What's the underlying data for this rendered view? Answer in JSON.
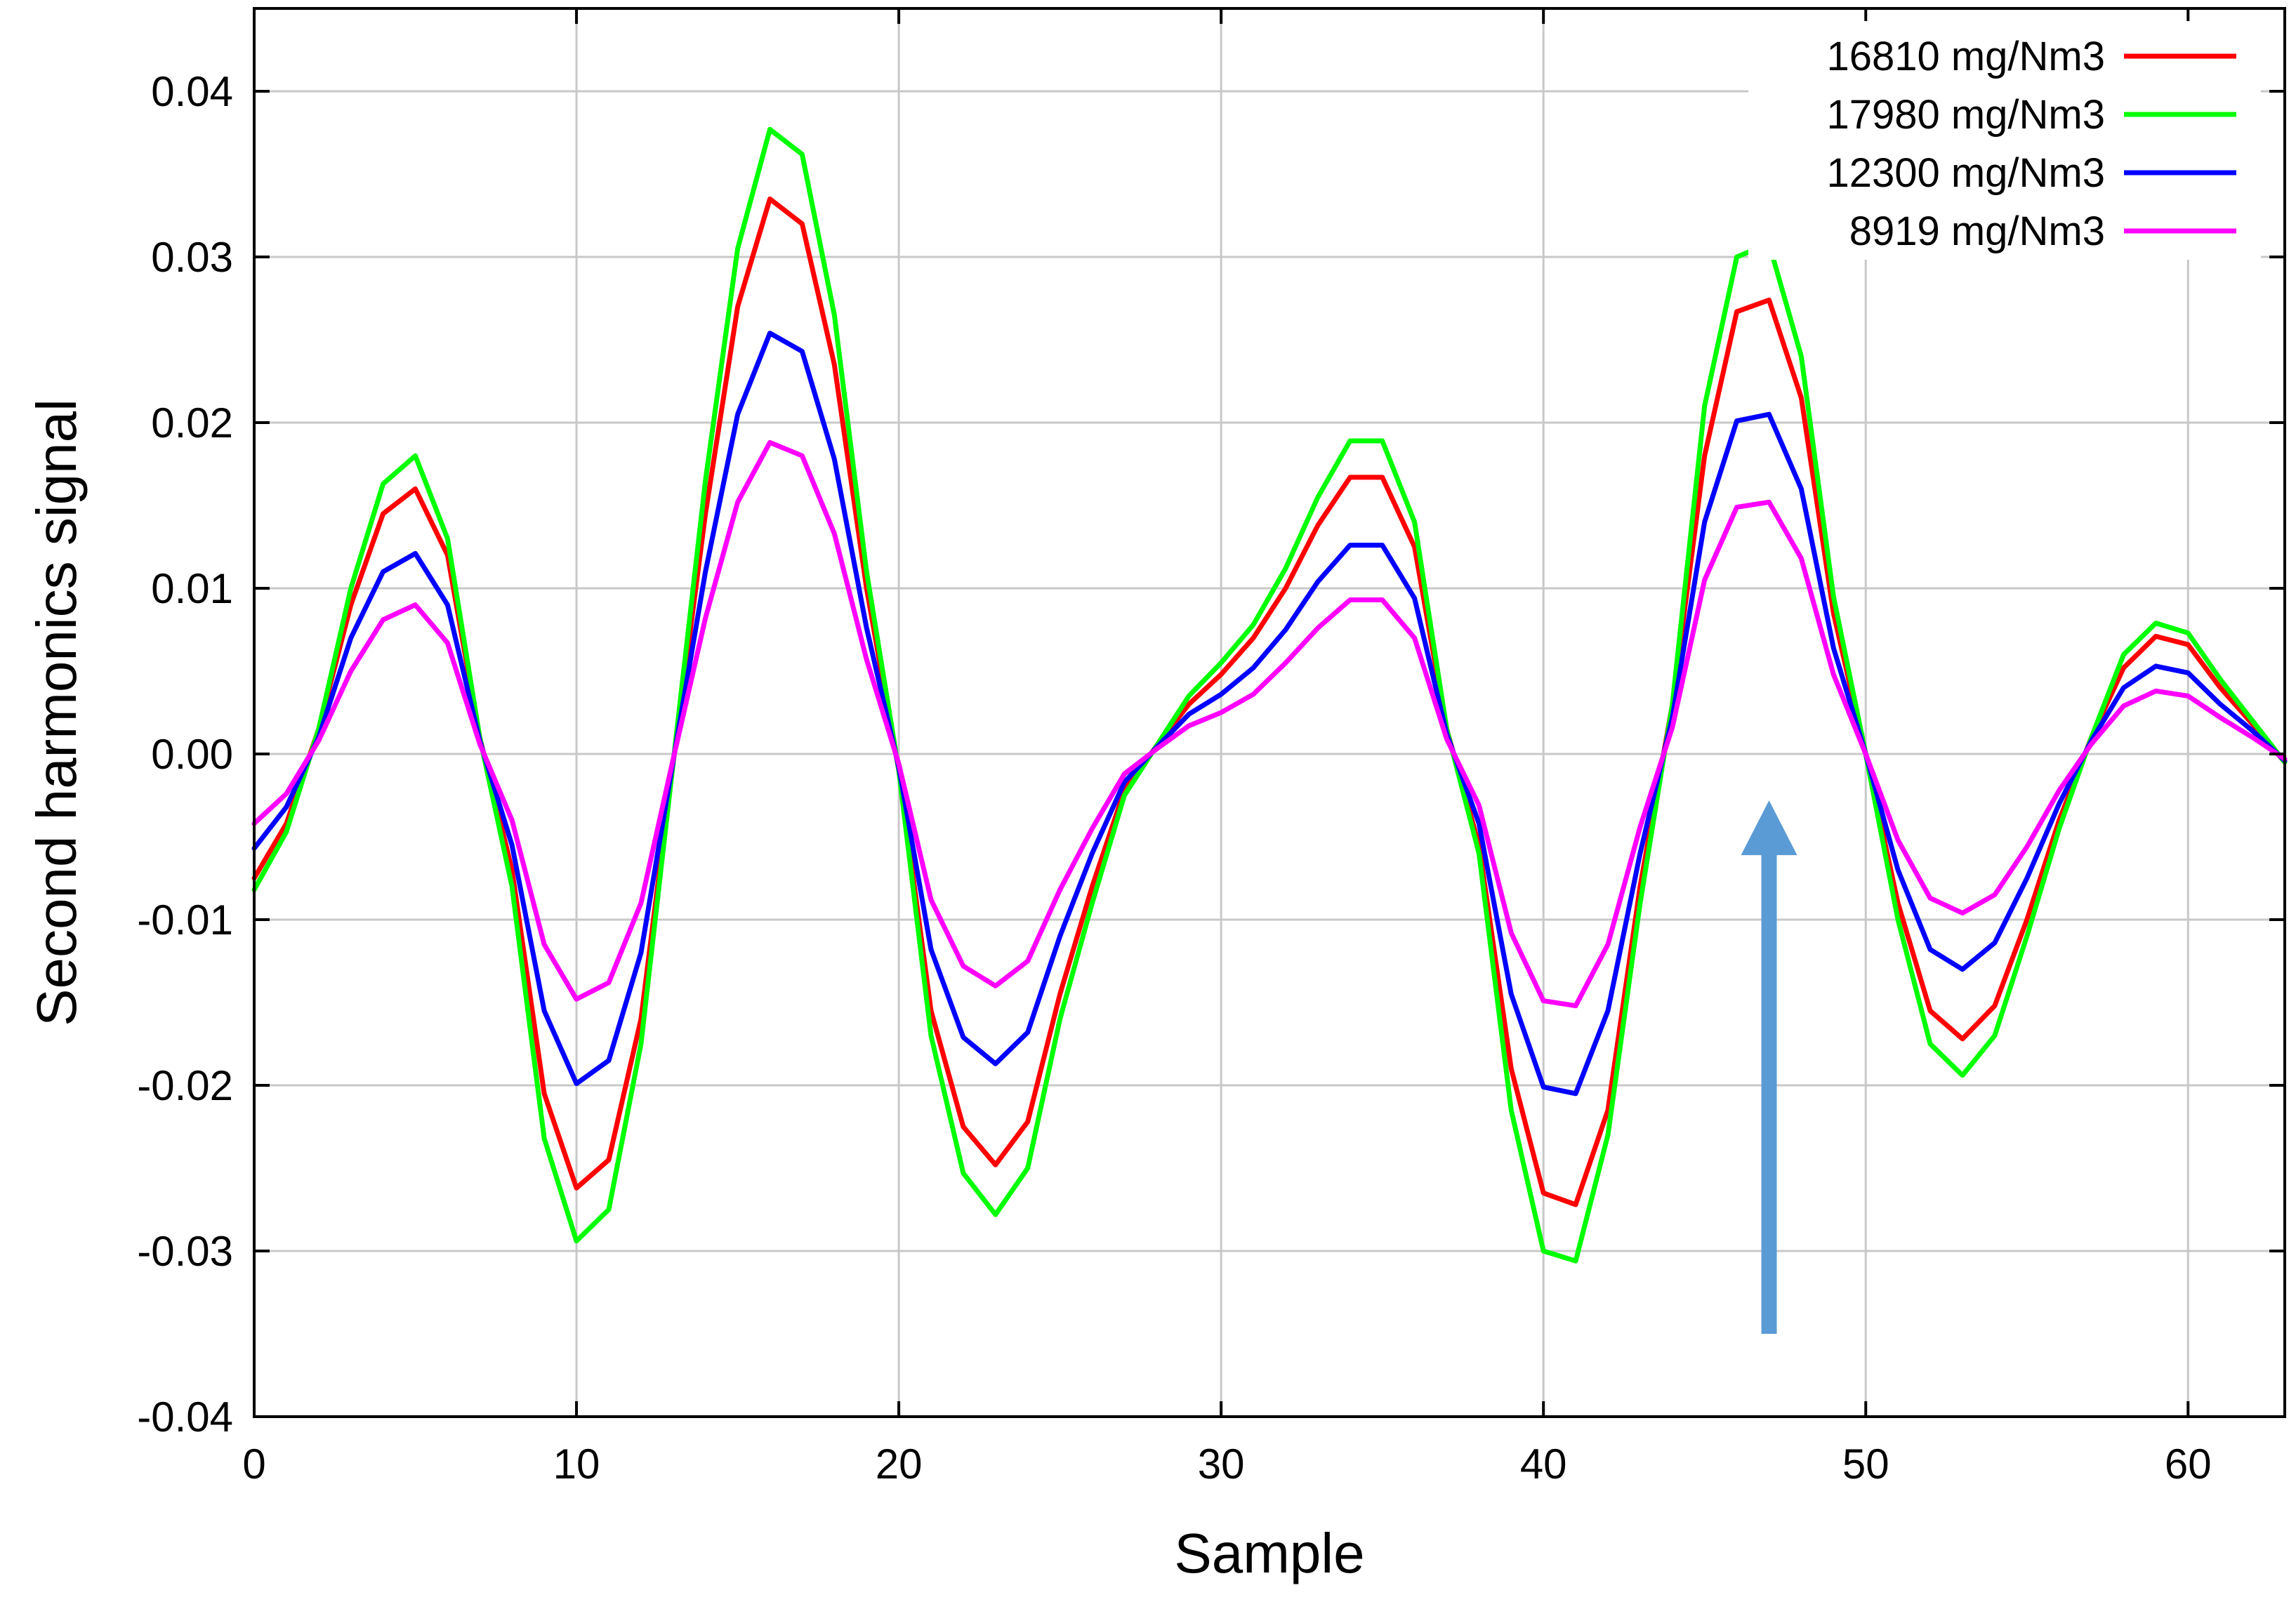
{
  "chart_data": {
    "type": "line",
    "title": "",
    "xlabel": "Sample",
    "ylabel": "Second harmonics signal",
    "xlim": [
      0,
      63
    ],
    "ylim": [
      -0.04,
      0.045
    ],
    "grid": true,
    "legend_position": "top-right",
    "x_ticks": [
      {
        "value": 0,
        "label": "0"
      },
      {
        "value": 10,
        "label": "10"
      },
      {
        "value": 20,
        "label": "20"
      },
      {
        "value": 30,
        "label": "30"
      },
      {
        "value": 40,
        "label": "40"
      },
      {
        "value": 50,
        "label": "50"
      },
      {
        "value": 60,
        "label": "60"
      }
    ],
    "y_ticks": [
      {
        "value": 0.04,
        "label": "0.04"
      },
      {
        "value": 0.03,
        "label": "0.03"
      },
      {
        "value": 0.02,
        "label": "0.02"
      },
      {
        "value": 0.01,
        "label": "0.01"
      },
      {
        "value": 0.0,
        "label": "0.00"
      },
      {
        "value": -0.01,
        "label": "-0.01"
      },
      {
        "value": -0.02,
        "label": "-0.02"
      },
      {
        "value": -0.03,
        "label": "-0.03"
      },
      {
        "value": -0.04,
        "label": "-0.04"
      }
    ],
    "x": [
      0,
      1,
      2,
      3,
      4,
      5,
      6,
      7,
      8,
      9,
      10,
      11,
      12,
      13,
      14,
      15,
      16,
      17,
      18,
      19,
      20,
      21,
      22,
      23,
      24,
      25,
      26,
      27,
      28,
      29,
      30,
      31,
      32,
      33,
      34,
      35,
      36,
      37,
      38,
      39,
      40,
      41,
      42,
      43,
      44,
      45,
      46,
      47,
      48,
      49,
      50,
      51,
      52,
      53,
      54,
      55,
      56,
      57,
      58,
      59,
      60,
      61,
      62,
      63
    ],
    "series": [
      {
        "name": "16810 mg/Nm3",
        "color": "#ff0000",
        "values": [
          -0.0075,
          -0.0042,
          0.0015,
          0.009,
          0.0145,
          0.016,
          0.012,
          0.001,
          -0.007,
          -0.0205,
          -0.0262,
          -0.0245,
          -0.016,
          -0.0005,
          0.0145,
          0.027,
          0.0335,
          0.032,
          0.0235,
          0.01,
          -0.001,
          -0.0155,
          -0.0225,
          -0.0248,
          -0.0222,
          -0.0145,
          -0.008,
          -0.0022,
          0.0005,
          0.003,
          0.0048,
          0.007,
          0.01,
          0.0138,
          0.0167,
          0.0167,
          0.0125,
          0.0015,
          -0.0055,
          -0.019,
          -0.0265,
          -0.0272,
          -0.0215,
          -0.008,
          0.003,
          0.018,
          0.0267,
          0.0274,
          0.0215,
          0.0085,
          0.0,
          -0.009,
          -0.0155,
          -0.0172,
          -0.0152,
          -0.01,
          -0.004,
          0.001,
          0.0052,
          0.0071,
          0.0066,
          0.004,
          0.0018,
          -0.0005
        ]
      },
      {
        "name": "17980 mg/Nm3",
        "color": "#00ff00",
        "values": [
          -0.0082,
          -0.0047,
          0.0015,
          0.01,
          0.0163,
          0.018,
          0.013,
          0.001,
          -0.008,
          -0.0232,
          -0.0294,
          -0.0275,
          -0.0175,
          -0.0005,
          0.0165,
          0.0305,
          0.0377,
          0.0362,
          0.0265,
          0.011,
          -0.001,
          -0.017,
          -0.0253,
          -0.0278,
          -0.025,
          -0.016,
          -0.009,
          -0.0025,
          0.0005,
          0.0035,
          0.0055,
          0.0078,
          0.0112,
          0.0155,
          0.0189,
          0.0189,
          0.014,
          0.0015,
          -0.006,
          -0.0215,
          -0.03,
          -0.0306,
          -0.023,
          -0.009,
          0.003,
          0.021,
          0.03,
          0.0308,
          0.024,
          0.0095,
          0.0,
          -0.01,
          -0.0175,
          -0.0194,
          -0.017,
          -0.011,
          -0.0045,
          0.001,
          0.006,
          0.0079,
          0.0073,
          0.0045,
          0.002,
          -0.0005
        ]
      },
      {
        "name": "12300 mg/Nm3",
        "color": "#0000ff",
        "values": [
          -0.0057,
          -0.0032,
          0.001,
          0.007,
          0.011,
          0.0121,
          0.009,
          0.0008,
          -0.0055,
          -0.0155,
          -0.0199,
          -0.0185,
          -0.012,
          -0.0004,
          0.011,
          0.0205,
          0.0254,
          0.0243,
          0.0178,
          0.0076,
          -0.0008,
          -0.0118,
          -0.0171,
          -0.0187,
          -0.0168,
          -0.011,
          -0.006,
          -0.0017,
          0.0004,
          0.0024,
          0.0036,
          0.0052,
          0.0075,
          0.0104,
          0.0126,
          0.0126,
          0.0094,
          0.0012,
          -0.0042,
          -0.0145,
          -0.0201,
          -0.0205,
          -0.0155,
          -0.006,
          0.0022,
          0.014,
          0.0201,
          0.0205,
          0.016,
          0.0064,
          0.0,
          -0.007,
          -0.0118,
          -0.013,
          -0.0114,
          -0.0075,
          -0.003,
          0.0008,
          0.004,
          0.0053,
          0.0049,
          0.003,
          0.0014,
          -0.0004
        ]
      },
      {
        "name": "8919 mg/Nm3",
        "color": "#ff00ff",
        "values": [
          -0.0042,
          -0.0024,
          0.0008,
          0.005,
          0.0081,
          0.009,
          0.0067,
          0.0006,
          -0.004,
          -0.0115,
          -0.0148,
          -0.0138,
          -0.009,
          -0.0003,
          0.0082,
          0.0152,
          0.0188,
          0.018,
          0.0133,
          0.0057,
          -0.0006,
          -0.0088,
          -0.0128,
          -0.014,
          -0.0125,
          -0.0082,
          -0.0045,
          -0.0012,
          0.0003,
          0.0017,
          0.0025,
          0.0036,
          0.0055,
          0.0076,
          0.0093,
          0.0093,
          0.007,
          0.0009,
          -0.0031,
          -0.0108,
          -0.0149,
          -0.0152,
          -0.0115,
          -0.0044,
          0.0016,
          0.0105,
          0.0149,
          0.0152,
          0.0118,
          0.0048,
          0.0,
          -0.0052,
          -0.0087,
          -0.0096,
          -0.0085,
          -0.0056,
          -0.0022,
          0.0006,
          0.0029,
          0.0038,
          0.0035,
          0.0022,
          0.001,
          -0.0003
        ]
      }
    ],
    "annotations": [
      {
        "type": "arrow",
        "direction": "up",
        "color": "#5b9bd5",
        "x": 47,
        "y_from": -0.035,
        "y_to": -0.0028
      }
    ]
  }
}
